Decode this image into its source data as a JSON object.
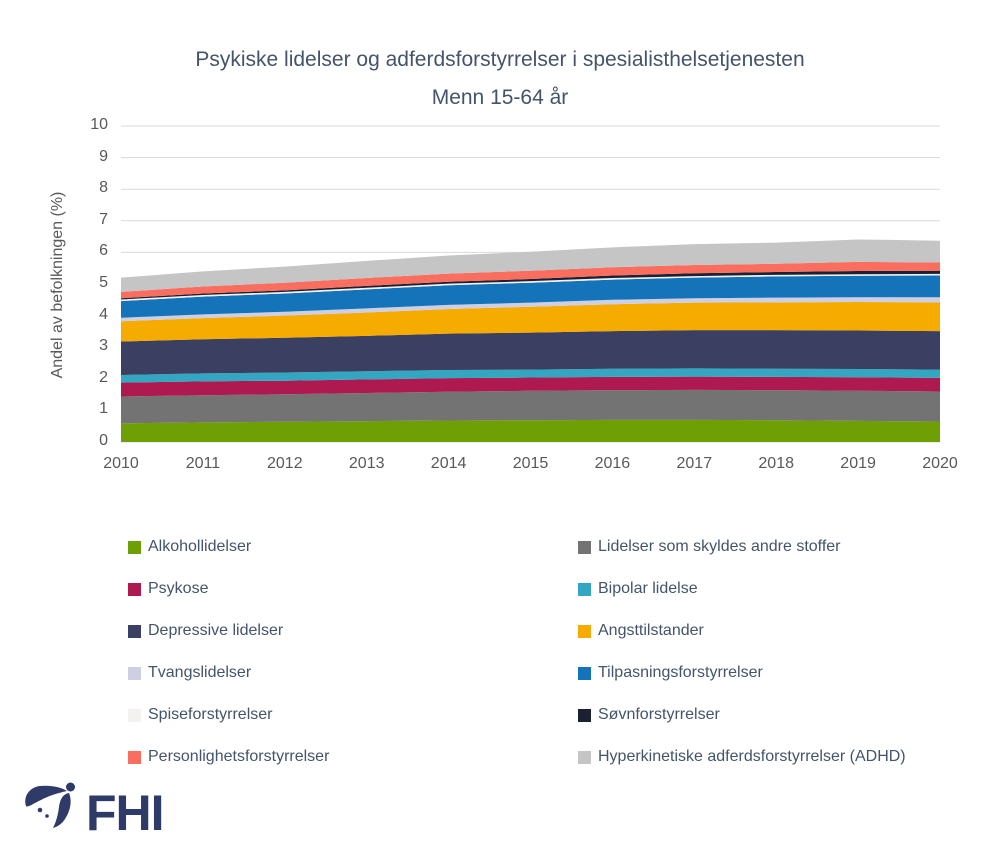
{
  "chart_data": {
    "type": "area",
    "stacked": true,
    "title": "Psykiske lidelser og adferdsforstyrrelser i spesialisthelsetjenesten",
    "subtitle": "Menn 15-64 år",
    "ylabel": "Andel av befolkningen (%)",
    "ylim": [
      0,
      10
    ],
    "ytick_step": 1,
    "grid": true,
    "legend_position": "bottom",
    "legend_columns": 2,
    "categories": [
      "2010",
      "2011",
      "2012",
      "2013",
      "2014",
      "2015",
      "2016",
      "2017",
      "2018",
      "2019",
      "2020"
    ],
    "series": [
      {
        "name": "Alkohollidelser",
        "color": "#6EA006",
        "values": [
          0.59,
          0.62,
          0.64,
          0.66,
          0.68,
          0.69,
          0.7,
          0.7,
          0.69,
          0.67,
          0.65
        ]
      },
      {
        "name": "Lidelser som skyldes andre stoffer",
        "color": "#737373",
        "values": [
          0.85,
          0.86,
          0.87,
          0.89,
          0.91,
          0.93,
          0.94,
          0.95,
          0.95,
          0.95,
          0.95
        ]
      },
      {
        "name": "Psykose",
        "color": "#AE1A50",
        "values": [
          0.44,
          0.44,
          0.43,
          0.43,
          0.43,
          0.42,
          0.42,
          0.42,
          0.42,
          0.43,
          0.43
        ]
      },
      {
        "name": "Bipolar lidelse",
        "color": "#33A6C2",
        "values": [
          0.24,
          0.25,
          0.26,
          0.26,
          0.26,
          0.25,
          0.26,
          0.26,
          0.26,
          0.26,
          0.26
        ]
      },
      {
        "name": "Depressive lidelser",
        "color": "#3B3F62",
        "values": [
          1.06,
          1.08,
          1.1,
          1.12,
          1.15,
          1.17,
          1.19,
          1.21,
          1.22,
          1.22,
          1.22
        ]
      },
      {
        "name": "Angsttilstander",
        "color": "#F5AB00",
        "values": [
          0.64,
          0.67,
          0.7,
          0.74,
          0.78,
          0.82,
          0.85,
          0.87,
          0.88,
          0.9,
          0.91
        ]
      },
      {
        "name": "Tvangslidelser",
        "color": "#CFCFE3",
        "values": [
          0.11,
          0.12,
          0.12,
          0.13,
          0.13,
          0.13,
          0.14,
          0.14,
          0.15,
          0.15,
          0.16
        ]
      },
      {
        "name": "Tilpasningsforstyrrelser",
        "color": "#1473B9",
        "values": [
          0.53,
          0.56,
          0.58,
          0.6,
          0.62,
          0.63,
          0.64,
          0.65,
          0.67,
          0.68,
          0.69
        ]
      },
      {
        "name": "Spiseforstyrrelser",
        "color": "#F4F2F0",
        "values": [
          0.05,
          0.05,
          0.05,
          0.05,
          0.05,
          0.05,
          0.05,
          0.05,
          0.05,
          0.05,
          0.05
        ]
      },
      {
        "name": "Søvnforstyrrelser",
        "color": "#1B2032",
        "values": [
          0.04,
          0.05,
          0.05,
          0.06,
          0.06,
          0.07,
          0.08,
          0.09,
          0.09,
          0.1,
          0.1
        ]
      },
      {
        "name": "Personlighetsforstyrrelser",
        "color": "#F96E5F",
        "values": [
          0.2,
          0.22,
          0.24,
          0.25,
          0.26,
          0.26,
          0.26,
          0.26,
          0.26,
          0.29,
          0.26
        ]
      },
      {
        "name": "Hyperkinetiske adferdsforstyrrelser (ADHD)",
        "color": "#C5C5C5",
        "values": [
          0.45,
          0.48,
          0.51,
          0.54,
          0.57,
          0.6,
          0.63,
          0.66,
          0.67,
          0.71,
          0.69
        ]
      }
    ]
  },
  "colors": {
    "title_text": "#44546A",
    "axis_text": "#595959",
    "legend_text": "#44546A",
    "gridline": "#D9D9D9",
    "logo": "#2E3A68"
  },
  "footer": {
    "logo_text": "FHI"
  }
}
